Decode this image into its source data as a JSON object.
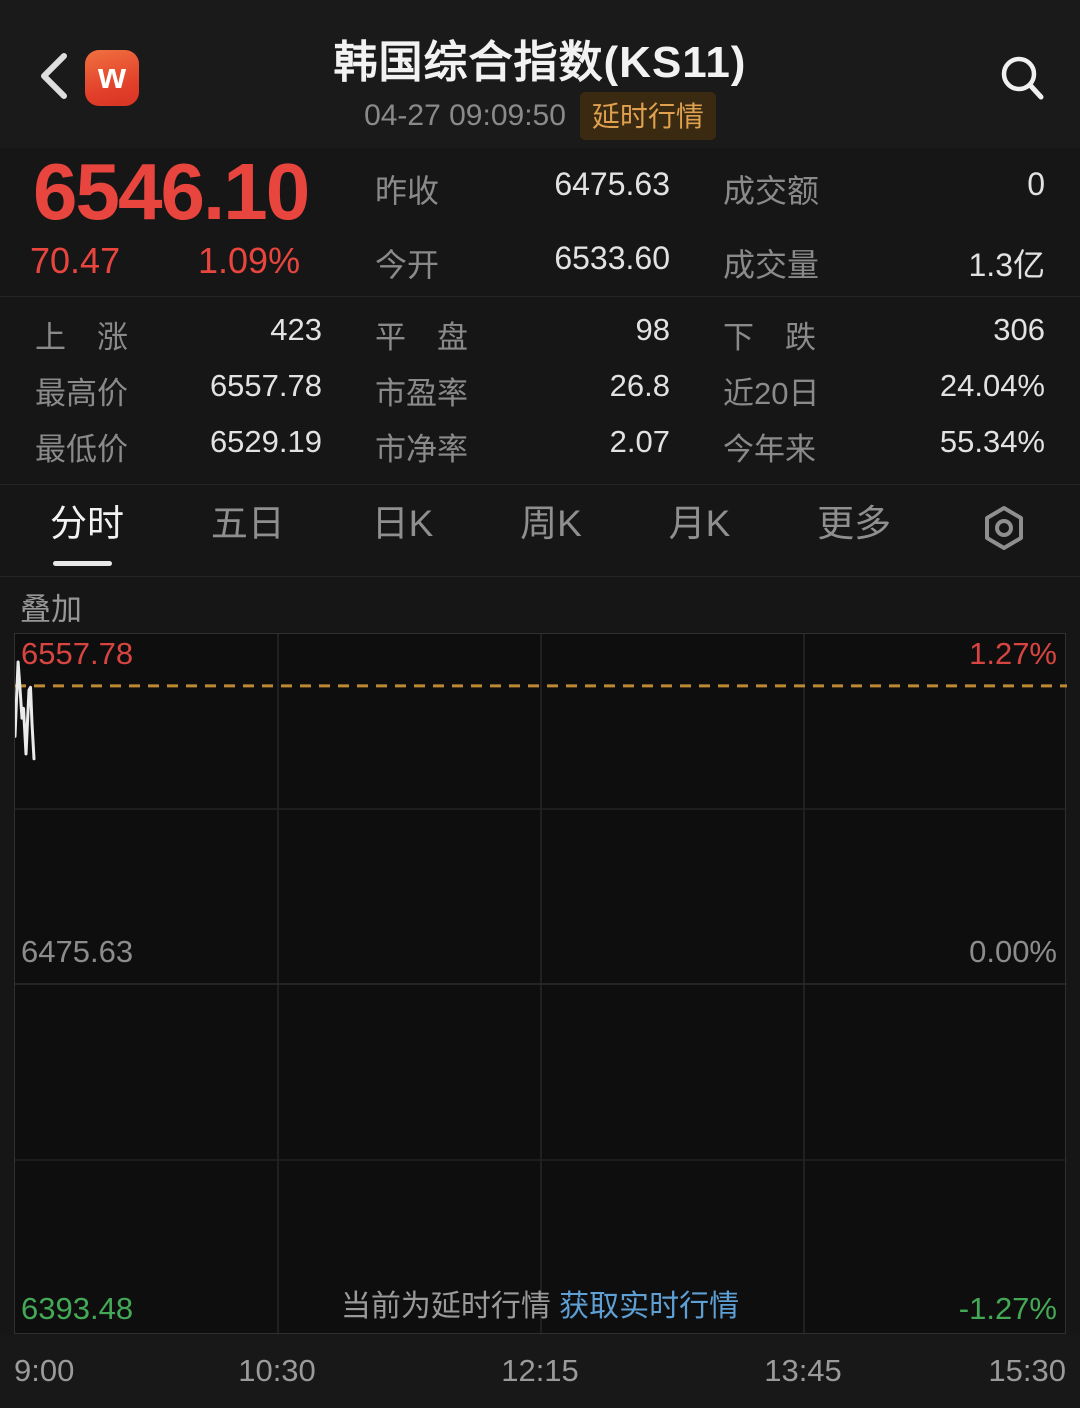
{
  "colors": {
    "up": "#e8453e",
    "down": "#43a956",
    "link": "#5e9fd4",
    "badge_text": "#dfa04f",
    "dashed_line": "#bd8a33",
    "line": "#eaeaea"
  },
  "header": {
    "title": "韩国综合指数(KS11)",
    "timestamp": "04-27 09:09:50",
    "badge": "延时行情",
    "logo_letter": "w"
  },
  "quote": {
    "price": "6546.10",
    "change": "70.47",
    "change_pct": "1.09%",
    "prev_close_label": "昨收",
    "prev_close": "6475.63",
    "open_label": "今开",
    "open": "6533.60",
    "turnover_label": "成交额",
    "turnover": "0",
    "volume_label": "成交量",
    "volume": "1.3亿"
  },
  "stats": {
    "advancers_label": "上　涨",
    "advancers": "423",
    "flat_label": "平　盘",
    "flat": "98",
    "decliners_label": "下　跌",
    "decliners": "306",
    "high_label": "最高价",
    "high": "6557.78",
    "pe_label": "市盈率",
    "pe": "26.8",
    "d20_label": "近20日",
    "d20": "24.04%",
    "low_label": "最低价",
    "low": "6529.19",
    "pb_label": "市净率",
    "pb": "2.07",
    "ytd_label": "今年来",
    "ytd": "55.34%"
  },
  "tabs": [
    "分时",
    "五日",
    "日K",
    "周K",
    "月K",
    "更多"
  ],
  "overlay_label": "叠加",
  "chart_data": {
    "type": "line",
    "title": "KS11 分时",
    "x_ticks": [
      "9:00",
      "10:30",
      "12:15",
      "13:45",
      "15:30"
    ],
    "y_axis_left": [
      "6557.78",
      "6475.63",
      "6393.48"
    ],
    "y_axis_right": [
      "1.27%",
      "0.00%",
      "-1.27%"
    ],
    "y_range_price": [
      6393.48,
      6557.78
    ],
    "y_range_pct": [
      -1.27,
      1.27
    ],
    "prev_close": 6475.63,
    "grid": {
      "v_lines_pct": [
        25,
        50,
        75
      ],
      "h_lines_pct": [
        25,
        50,
        75
      ]
    },
    "reference_line": {
      "value": "6546.10",
      "pct": "1.09%",
      "y_pct": 7.4,
      "style": "dashed",
      "color": "#bd8a33"
    },
    "series": [
      {
        "name": "KS11",
        "color": "#eaeaea",
        "points_pct": [
          [
            0,
            14.6
          ],
          [
            0.14,
            9.3
          ],
          [
            0.29,
            4.0
          ],
          [
            0.48,
            7.8
          ],
          [
            0.67,
            12.0
          ],
          [
            0.81,
            10.6
          ],
          [
            1.05,
            17.1
          ],
          [
            1.33,
            8.0
          ],
          [
            1.47,
            7.6
          ],
          [
            1.62,
            12.8
          ],
          [
            1.81,
            17.8
          ]
        ]
      }
    ],
    "footer_note": "当前为延时行情",
    "footer_link": "获取实时行情"
  }
}
